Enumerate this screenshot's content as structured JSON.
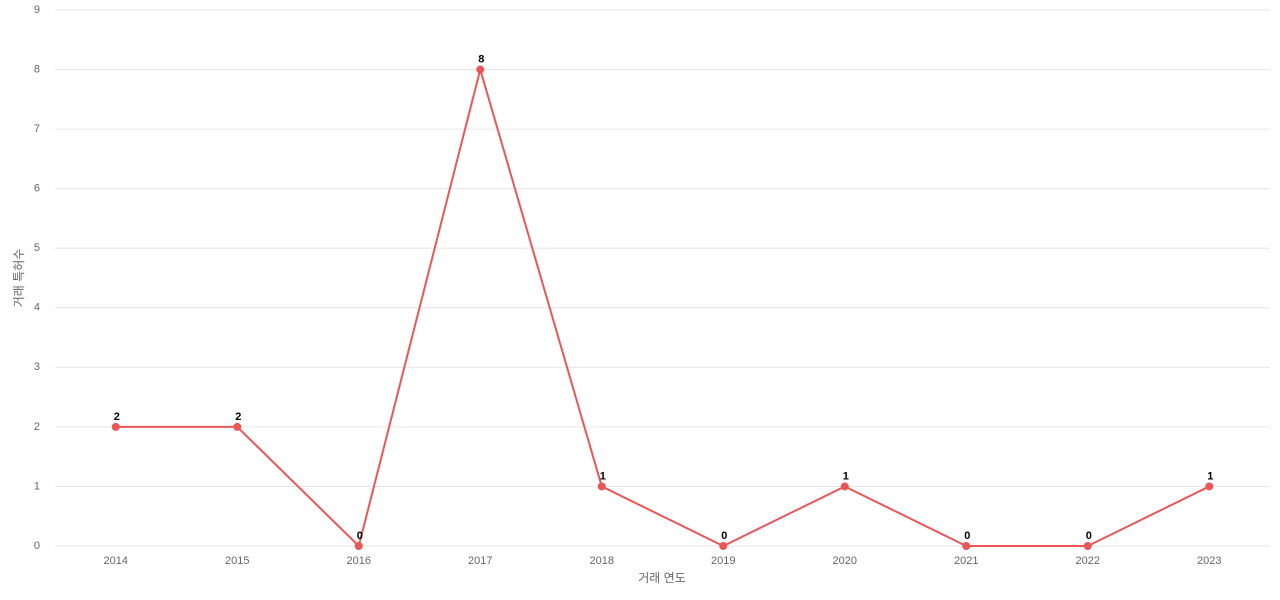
{
  "chart_data": {
    "type": "line",
    "x_label": "거래 연도",
    "y_label": "거래 특허수",
    "categories": [
      "2014",
      "2015",
      "2016",
      "2017",
      "2018",
      "2019",
      "2020",
      "2021",
      "2022",
      "2023"
    ],
    "series": [
      {
        "name": "거래 특허수",
        "color": "#eb5757",
        "values": [
          2,
          2,
          0,
          8,
          1,
          0,
          1,
          0,
          0,
          1
        ]
      }
    ],
    "ylim": [
      0,
      9
    ],
    "yticks": [
      0,
      1,
      2,
      3,
      4,
      5,
      6,
      7,
      8,
      9
    ],
    "grid": true,
    "legend": false,
    "data_labels": true
  }
}
